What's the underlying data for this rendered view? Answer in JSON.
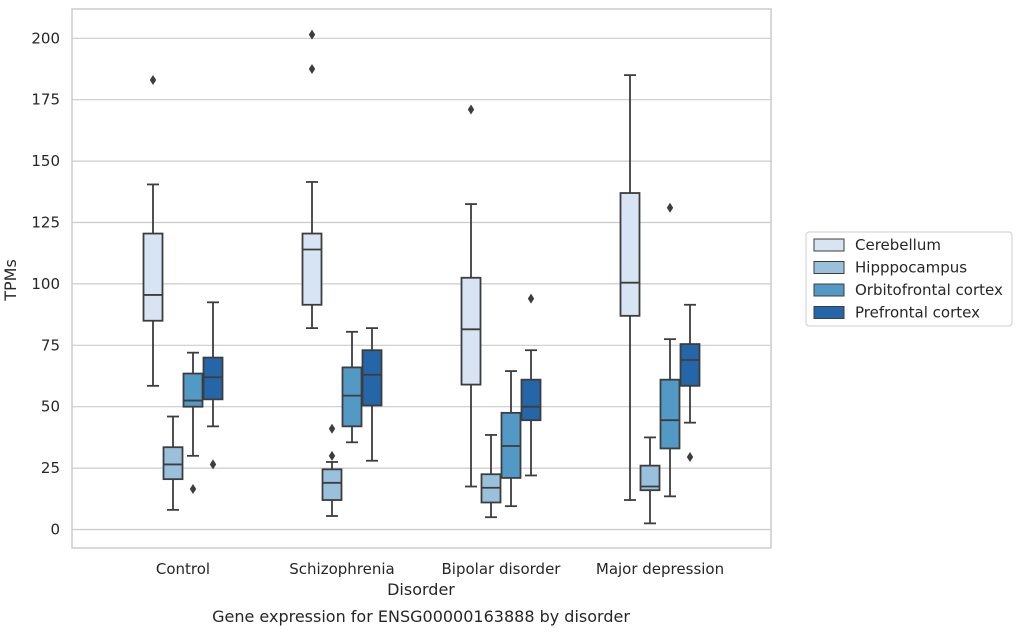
{
  "chart_data": {
    "type": "box",
    "caption": "Gene expression for ENSG00000163888 by disorder",
    "xlabel": "Disorder",
    "ylabel": "TPMs",
    "ylim": [
      -7,
      212
    ],
    "yticks": [
      0,
      25,
      50,
      75,
      100,
      125,
      150,
      175,
      200
    ],
    "grid": "horizontal",
    "legend_position": "right",
    "categories": [
      "Control",
      "Schizophrenia",
      "Bipolar disorder",
      "Major depression"
    ],
    "series": [
      {
        "name": "Cerebellum",
        "color": "#d6e4f3",
        "boxes": [
          {
            "whislo": 58.5,
            "q1": 85,
            "med": 95.5,
            "q3": 120.5,
            "whishi": 140.5,
            "fliers": [
              183
            ]
          },
          {
            "whislo": 82,
            "q1": 91.5,
            "med": 114,
            "q3": 120.5,
            "whishi": 141.5,
            "fliers": [
              187.5,
              201.5
            ]
          },
          {
            "whislo": 17.5,
            "q1": 59,
            "med": 81.5,
            "q3": 102.5,
            "whishi": 132.5,
            "fliers": [
              171
            ]
          },
          {
            "whislo": 12,
            "q1": 87,
            "med": 100.5,
            "q3": 137,
            "whishi": 185,
            "fliers": []
          }
        ]
      },
      {
        "name": "Hipppocampus",
        "color": "#9ac1dc",
        "boxes": [
          {
            "whislo": 8,
            "q1": 20.5,
            "med": 26.5,
            "q3": 33.5,
            "whishi": 46,
            "fliers": []
          },
          {
            "whislo": 5.5,
            "q1": 12,
            "med": 19,
            "q3": 24.5,
            "whishi": 27.5,
            "fliers": [
              30,
              41
            ]
          },
          {
            "whislo": 5,
            "q1": 11,
            "med": 17,
            "q3": 22.5,
            "whishi": 38.5,
            "fliers": []
          },
          {
            "whislo": 2.5,
            "q1": 16,
            "med": 17.5,
            "q3": 26,
            "whishi": 37.5,
            "fliers": []
          }
        ]
      },
      {
        "name": "Orbitofrontal cortex",
        "color": "#5399c6",
        "boxes": [
          {
            "whislo": 30,
            "q1": 50,
            "med": 52.5,
            "q3": 63.5,
            "whishi": 72,
            "fliers": [
              16.5
            ]
          },
          {
            "whislo": 35.5,
            "q1": 42,
            "med": 54.5,
            "q3": 66,
            "whishi": 80.5,
            "fliers": []
          },
          {
            "whislo": 9.5,
            "q1": 21,
            "med": 34,
            "q3": 47.5,
            "whishi": 64.5,
            "fliers": []
          },
          {
            "whislo": 13.5,
            "q1": 33,
            "med": 44.5,
            "q3": 61,
            "whishi": 77.5,
            "fliers": [
              131
            ]
          }
        ]
      },
      {
        "name": "Prefrontal cortex",
        "color": "#2466a7",
        "boxes": [
          {
            "whislo": 42,
            "q1": 53,
            "med": 62,
            "q3": 70,
            "whishi": 92.5,
            "fliers": [
              26.5
            ]
          },
          {
            "whislo": 28,
            "q1": 50.5,
            "med": 63,
            "q3": 73,
            "whishi": 82,
            "fliers": []
          },
          {
            "whislo": 22,
            "q1": 44.5,
            "med": 50,
            "q3": 61,
            "whishi": 73,
            "fliers": [
              94
            ]
          },
          {
            "whislo": 43.5,
            "q1": 58.5,
            "med": 69,
            "q3": 75.5,
            "whishi": 91.5,
            "fliers": [
              29.5
            ]
          }
        ]
      }
    ]
  }
}
